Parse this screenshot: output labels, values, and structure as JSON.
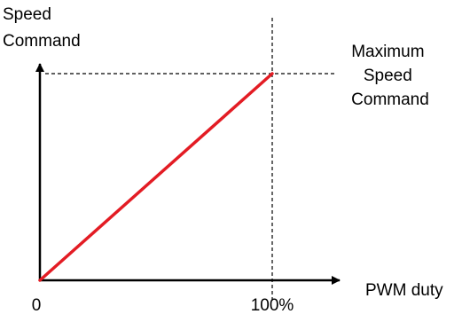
{
  "chart_data": {
    "type": "line",
    "ylabel_lines": [
      "Speed",
      "Command"
    ],
    "xlabel": "PWM duty",
    "xlim": [
      0,
      100
    ],
    "ylim": [
      0,
      100
    ],
    "x_ticks": [
      "0",
      "100%"
    ],
    "max_annotation_lines": [
      "Maximum",
      "Speed",
      "Command"
    ],
    "series": [
      {
        "x": [
          0,
          100
        ],
        "y": [
          0,
          100
        ],
        "color": "#e31c24"
      }
    ],
    "reference_color": "#000000",
    "grid": false
  }
}
